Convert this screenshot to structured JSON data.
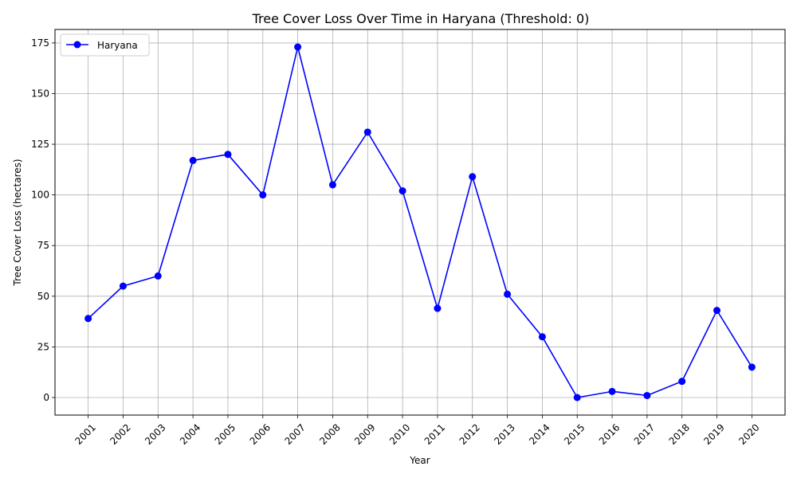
{
  "chart_data": {
    "type": "line",
    "title": "Tree Cover Loss Over Time in Haryana (Threshold: 0)",
    "xlabel": "Year",
    "ylabel": "Tree Cover Loss (hectares)",
    "x": [
      "2001",
      "2002",
      "2003",
      "2004",
      "2005",
      "2006",
      "2007",
      "2008",
      "2009",
      "2010",
      "2011",
      "2012",
      "2013",
      "2014",
      "2015",
      "2016",
      "2017",
      "2018",
      "2019",
      "2020"
    ],
    "series": [
      {
        "name": "Haryana",
        "color": "#0000ff",
        "marker": "circle",
        "values": [
          39,
          55,
          60,
          117,
          120,
          100,
          173,
          105,
          131,
          102,
          44,
          109,
          51,
          30,
          0,
          3,
          1,
          8,
          43,
          15
        ]
      }
    ],
    "ylim": [
      -8.65,
      181.65
    ],
    "yticks": [
      0,
      25,
      50,
      75,
      100,
      125,
      150,
      175
    ],
    "x_tick_rotation_deg": 45,
    "grid": true,
    "legend_position": "upper-left"
  }
}
